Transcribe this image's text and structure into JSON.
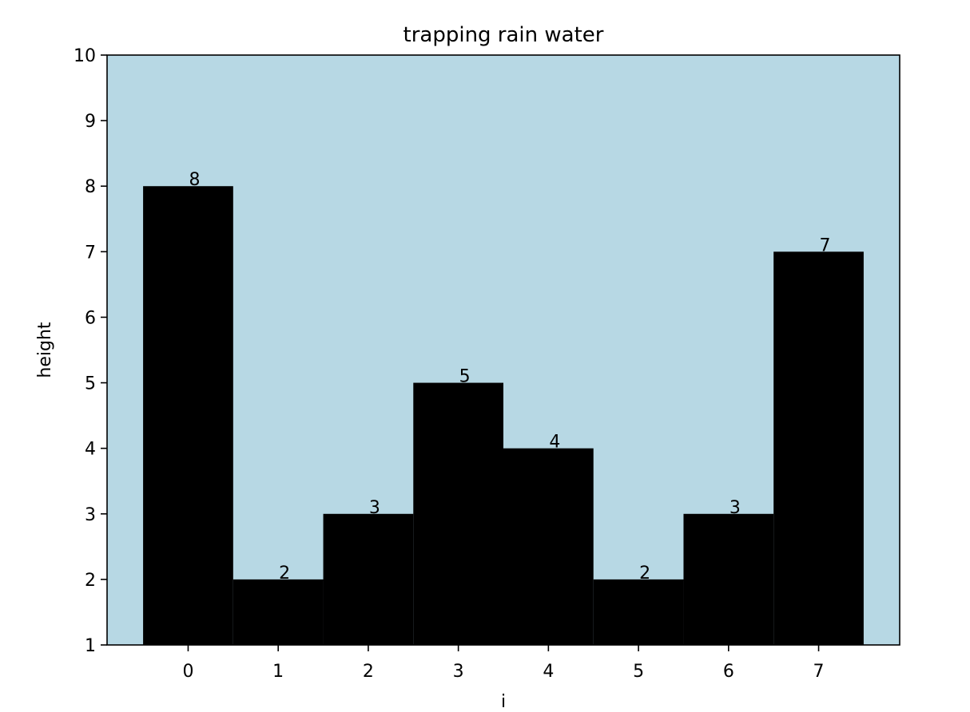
{
  "chart_data": {
    "type": "bar",
    "title": "trapping rain water",
    "xlabel": "i",
    "ylabel": "height",
    "categories": [
      "0",
      "1",
      "2",
      "3",
      "4",
      "5",
      "6",
      "7"
    ],
    "values": [
      8,
      2,
      3,
      5,
      4,
      2,
      3,
      7
    ],
    "data_labels": [
      "8",
      "2",
      "3",
      "5",
      "4",
      "2",
      "3",
      "7"
    ],
    "ylim": [
      1,
      10
    ],
    "xlim": [
      -0.9,
      7.9
    ],
    "yticks": [
      1,
      2,
      3,
      4,
      5,
      6,
      7,
      8,
      9,
      10
    ],
    "ytick_labels": [
      "1",
      "2",
      "3",
      "4",
      "5",
      "6",
      "7",
      "8",
      "9",
      "10"
    ],
    "xtick_labels": [
      "0",
      "1",
      "2",
      "3",
      "4",
      "5",
      "6",
      "7"
    ],
    "bar_width": 1.0,
    "grid": false,
    "colors": {
      "plot_background": "#b7d8e4",
      "bar": "#000000",
      "axes": "#000000",
      "page_background": "#ffffff"
    }
  }
}
